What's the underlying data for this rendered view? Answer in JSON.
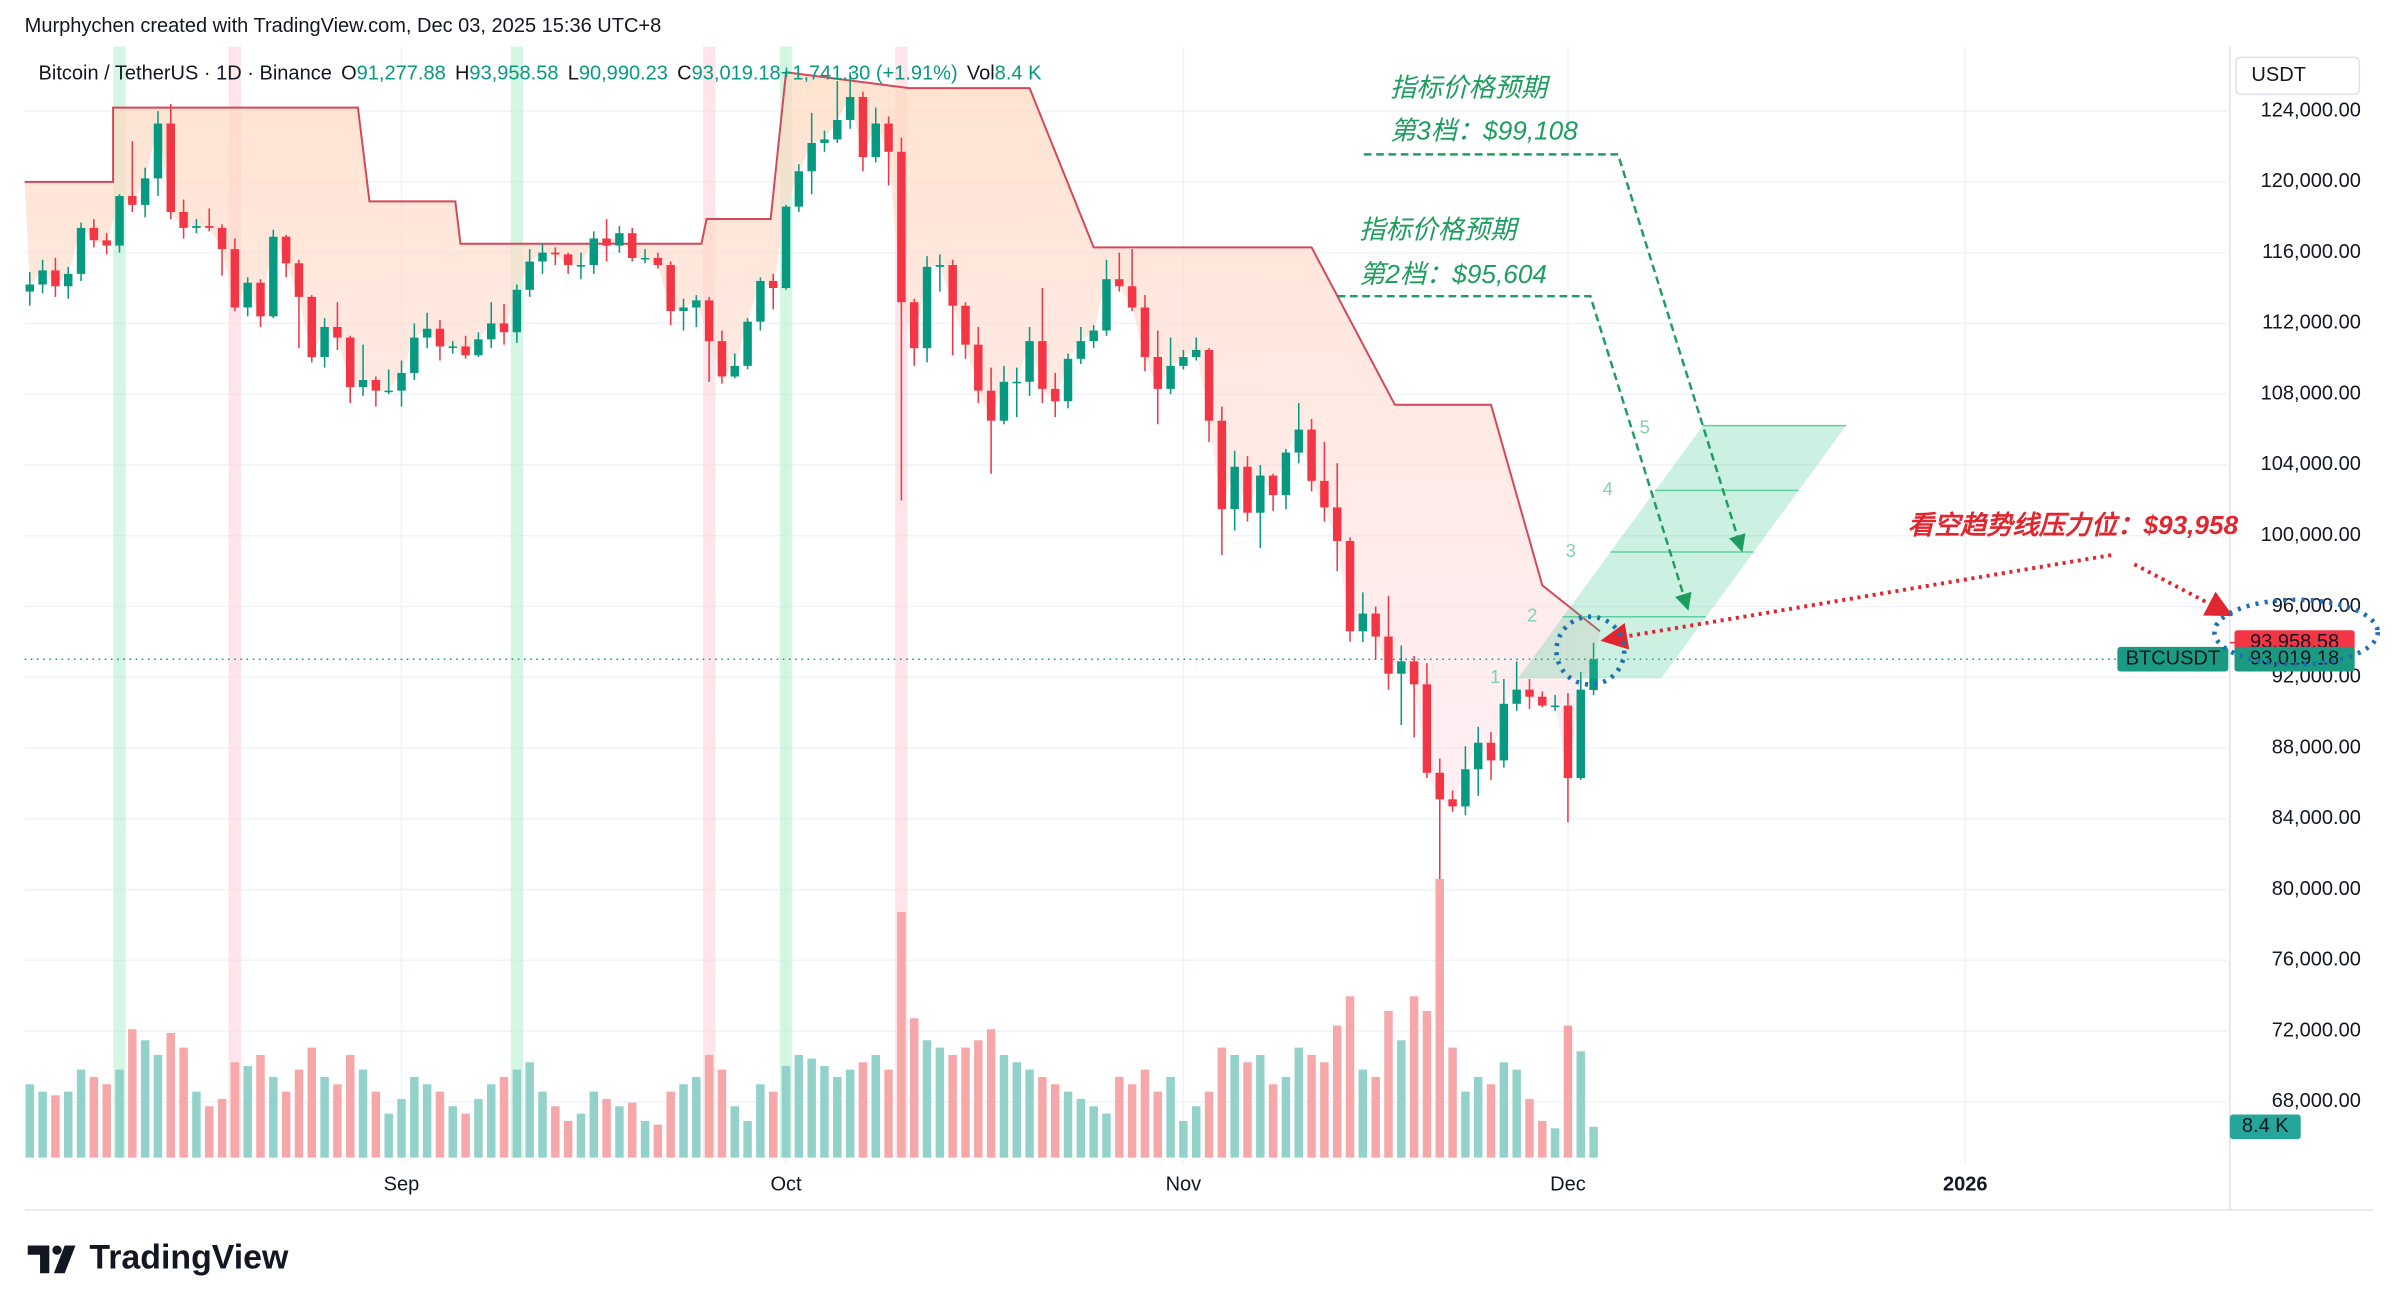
{
  "header": {
    "attribution": "Murphychen created with TradingView.com, Dec 03, 2025 15:36 UTC+8",
    "logo": "TradingView"
  },
  "chart_data": {
    "type": "candlestick",
    "legend": {
      "symbol": "Bitcoin / TetherUS · 1D · Binance",
      "items": [
        {
          "k": "O",
          "v": "91,277.88"
        },
        {
          "k": "H",
          "v": "93,958.58"
        },
        {
          "k": "L",
          "v": "90,990.23"
        },
        {
          "k": "C",
          "v": "93,019.18"
        },
        {
          "k": "",
          "v": "+1,741.30 (+1.91%)"
        },
        {
          "k": "Vol",
          "v": "8.4 K"
        }
      ]
    },
    "currency": "USDT",
    "symbol_tag": "BTCUSDT",
    "up_color": "#089981",
    "down_color": "#f23645",
    "volume_up_color": "#92d2ca",
    "volume_down_color": "#f5a7aa",
    "band_color": "#d4495a",
    "grid": true,
    "xlim": [
      -0.4,
      171.4
    ],
    "xticks": [
      {
        "value": 29,
        "label": "Sep"
      },
      {
        "value": 59,
        "label": "Oct"
      },
      {
        "value": 90,
        "label": "Nov"
      },
      {
        "value": 120,
        "label": "Dec"
      },
      {
        "value": 151,
        "label": "2026"
      }
    ],
    "ylim": [
      64500,
      127650
    ],
    "yticks": [
      {
        "value": 68000,
        "label": "68,000.00"
      },
      {
        "value": 72000,
        "label": "72,000.00"
      },
      {
        "value": 76000,
        "label": "76,000.00"
      },
      {
        "value": 80000,
        "label": "80,000.00"
      },
      {
        "value": 84000,
        "label": "84,000.00"
      },
      {
        "value": 88000,
        "label": "88,000.00"
      },
      {
        "value": 92000,
        "label": "92,000.00"
      },
      {
        "value": 96000,
        "label": "96,000.00"
      },
      {
        "value": 100000,
        "label": "100,000.00"
      },
      {
        "value": 104000,
        "label": "104,000.00"
      },
      {
        "value": 108000,
        "label": "108,000.00"
      },
      {
        "value": 112000,
        "label": "112,000.00"
      },
      {
        "value": 116000,
        "label": "116,000.00"
      },
      {
        "value": 120000,
        "label": "120,000.00"
      },
      {
        "value": 124000,
        "label": "124,000.00"
      }
    ],
    "volume_ylim": [
      0,
      303000
    ],
    "ohlc": [
      [
        113800,
        114900,
        113000,
        114200
      ],
      [
        114200,
        115600,
        113700,
        115000
      ],
      [
        115000,
        115700,
        113500,
        114100
      ],
      [
        114100,
        115200,
        113400,
        114800
      ],
      [
        114800,
        117700,
        114400,
        117400
      ],
      [
        117400,
        117900,
        116300,
        116700
      ],
      [
        116700,
        117100,
        115900,
        116400
      ],
      [
        116400,
        119300,
        116000,
        119200
      ],
      [
        119200,
        122300,
        118300,
        118700
      ],
      [
        118700,
        120800,
        118000,
        120200
      ],
      [
        120200,
        124000,
        119200,
        123300
      ],
      [
        123300,
        124400,
        117900,
        118300
      ],
      [
        118300,
        119000,
        116800,
        117400
      ],
      [
        117400,
        117900,
        117100,
        117500
      ],
      [
        117500,
        118500,
        117200,
        117400
      ],
      [
        117400,
        117600,
        114700,
        116200
      ],
      [
        116200,
        116800,
        112700,
        112900
      ],
      [
        112900,
        114600,
        112400,
        114300
      ],
      [
        114300,
        114500,
        111800,
        112400
      ],
      [
        112400,
        117300,
        112300,
        116900
      ],
      [
        116900,
        117000,
        114600,
        115400
      ],
      [
        115400,
        115600,
        110600,
        113500
      ],
      [
        113500,
        113600,
        109800,
        110100
      ],
      [
        110100,
        112300,
        109500,
        111800
      ],
      [
        111800,
        113200,
        110500,
        111200
      ],
      [
        111200,
        111300,
        107500,
        108400
      ],
      [
        108400,
        110800,
        107900,
        108800
      ],
      [
        108800,
        109000,
        107300,
        108200
      ],
      [
        108200,
        109400,
        108000,
        108200
      ],
      [
        108200,
        109900,
        107300,
        109200
      ],
      [
        109200,
        112000,
        108800,
        111200
      ],
      [
        111200,
        112600,
        110600,
        111700
      ],
      [
        111700,
        112200,
        109900,
        110700
      ],
      [
        110700,
        111000,
        110300,
        110700
      ],
      [
        110700,
        111300,
        110000,
        110200
      ],
      [
        110200,
        111500,
        110100,
        111100
      ],
      [
        111100,
        113200,
        110600,
        112000
      ],
      [
        112000,
        113100,
        110800,
        111500
      ],
      [
        111500,
        114200,
        110900,
        113900
      ],
      [
        113900,
        116200,
        113500,
        115500
      ],
      [
        115500,
        116500,
        114800,
        116000
      ],
      [
        116000,
        116300,
        115300,
        115900
      ],
      [
        115900,
        116000,
        114800,
        115300
      ],
      [
        115300,
        116000,
        114500,
        115300
      ],
      [
        115300,
        117200,
        114800,
        116800
      ],
      [
        116800,
        117900,
        115500,
        116400
      ],
      [
        116400,
        117500,
        116000,
        117100
      ],
      [
        117100,
        117400,
        115500,
        115700
      ],
      [
        115700,
        116200,
        115400,
        115700
      ],
      [
        115700,
        116000,
        115100,
        115300
      ],
      [
        115300,
        115500,
        111900,
        112700
      ],
      [
        112700,
        113400,
        111600,
        112900
      ],
      [
        112900,
        113600,
        111800,
        113300
      ],
      [
        113300,
        113500,
        108700,
        111000
      ],
      [
        111000,
        111600,
        108600,
        109000
      ],
      [
        109000,
        110300,
        108900,
        109600
      ],
      [
        109600,
        112300,
        109400,
        112100
      ],
      [
        112100,
        114600,
        111600,
        114400
      ],
      [
        114400,
        114800,
        112800,
        114000
      ],
      [
        114000,
        118700,
        113900,
        118600
      ],
      [
        118600,
        121000,
        118300,
        120600
      ],
      [
        120600,
        123900,
        119300,
        122200
      ],
      [
        122200,
        122900,
        121700,
        122400
      ],
      [
        122400,
        125700,
        122200,
        123500
      ],
      [
        123500,
        126200,
        123000,
        124800
      ],
      [
        124800,
        125100,
        120600,
        121400
      ],
      [
        121400,
        124200,
        121100,
        123300
      ],
      [
        123300,
        123700,
        119800,
        121700
      ],
      [
        121700,
        122500,
        102000,
        113200
      ],
      [
        113200,
        113400,
        109600,
        110600
      ],
      [
        110600,
        115800,
        109800,
        115200
      ],
      [
        115200,
        115900,
        113800,
        115300
      ],
      [
        115300,
        115600,
        110200,
        113000
      ],
      [
        113000,
        113200,
        110000,
        110800
      ],
      [
        110800,
        111800,
        107500,
        108200
      ],
      [
        108200,
        109500,
        103500,
        106500
      ],
      [
        106500,
        109600,
        106300,
        108700
      ],
      [
        108700,
        109500,
        106700,
        108700
      ],
      [
        108700,
        111800,
        107900,
        111000
      ],
      [
        111000,
        114000,
        107500,
        108300
      ],
      [
        108300,
        109200,
        106700,
        107600
      ],
      [
        107600,
        110300,
        107200,
        110000
      ],
      [
        110000,
        111800,
        109700,
        111000
      ],
      [
        111000,
        111900,
        110600,
        111600
      ],
      [
        111600,
        115600,
        111300,
        114500
      ],
      [
        114500,
        116000,
        113800,
        114100
      ],
      [
        114100,
        116200,
        112700,
        112900
      ],
      [
        112900,
        113600,
        109300,
        110100
      ],
      [
        110100,
        111600,
        106300,
        108300
      ],
      [
        108300,
        111200,
        108000,
        109600
      ],
      [
        109600,
        110500,
        109400,
        110100
      ],
      [
        110100,
        111200,
        109900,
        110500
      ],
      [
        110500,
        110600,
        105300,
        106500
      ],
      [
        106500,
        107300,
        98900,
        101500
      ],
      [
        101500,
        104800,
        100300,
        103900
      ],
      [
        103900,
        104500,
        100800,
        101300
      ],
      [
        101300,
        104000,
        99300,
        103400
      ],
      [
        103400,
        103500,
        101400,
        102300
      ],
      [
        102300,
        104900,
        101500,
        104700
      ],
      [
        104700,
        107500,
        104100,
        106000
      ],
      [
        106000,
        106600,
        102500,
        103100
      ],
      [
        103100,
        105300,
        100800,
        101600
      ],
      [
        101600,
        104100,
        98000,
        99700
      ],
      [
        99700,
        99900,
        94000,
        94600
      ],
      [
        94600,
        96800,
        94000,
        95600
      ],
      [
        95600,
        96000,
        93000,
        94300
      ],
      [
        94300,
        96600,
        91300,
        92200
      ],
      [
        92200,
        93800,
        89300,
        92900
      ],
      [
        92900,
        93200,
        88600,
        91600
      ],
      [
        91600,
        92800,
        86300,
        86600
      ],
      [
        86600,
        87400,
        80600,
        85100
      ],
      [
        85100,
        85600,
        84400,
        84700
      ],
      [
        84700,
        88100,
        84200,
        86800
      ],
      [
        86800,
        89200,
        85300,
        88300
      ],
      [
        88300,
        88900,
        86200,
        87300
      ],
      [
        87300,
        91900,
        86900,
        90500
      ],
      [
        90500,
        92900,
        90100,
        91300
      ],
      [
        91300,
        91900,
        90200,
        90900
      ],
      [
        90900,
        91200,
        90300,
        90400
      ],
      [
        90400,
        91000,
        90100,
        90400
      ],
      [
        90400,
        91100,
        83800,
        86300
      ],
      [
        86300,
        92300,
        86200,
        91300
      ],
      [
        91277.88,
        93958.58,
        90990.23,
        93019.18
      ]
    ],
    "volume": [
      20000,
      18000,
      17000,
      18000,
      24000,
      22000,
      20000,
      24000,
      35000,
      32000,
      28000,
      34000,
      30000,
      18000,
      14000,
      16000,
      26000,
      25000,
      28000,
      22000,
      18000,
      24000,
      30000,
      22000,
      20000,
      28000,
      24000,
      18000,
      12000,
      16000,
      22000,
      20000,
      18000,
      14000,
      12000,
      16000,
      20000,
      22000,
      24000,
      26000,
      18000,
      14000,
      10000,
      12000,
      18000,
      16000,
      14000,
      15000,
      10000,
      9000,
      18000,
      20000,
      22000,
      28000,
      24000,
      14000,
      10000,
      20000,
      18000,
      25000,
      28000,
      27000,
      25000,
      22000,
      24000,
      26000,
      28000,
      24000,
      67000,
      38000,
      32000,
      30000,
      28000,
      30000,
      32000,
      35000,
      28000,
      26000,
      24000,
      22000,
      20000,
      18000,
      16000,
      14000,
      12000,
      22000,
      20000,
      24000,
      18000,
      22000,
      10000,
      14000,
      18000,
      30000,
      28000,
      26000,
      28000,
      20000,
      22000,
      30000,
      28000,
      26000,
      36000,
      44000,
      24000,
      22000,
      40000,
      32000,
      44000,
      40000,
      76000,
      30000,
      18000,
      22000,
      20000,
      26000,
      24000,
      16000,
      10000,
      8000,
      36000,
      29000,
      8400
    ],
    "band": {
      "x": [
        -0.4,
        6.5,
        6.5,
        25.6,
        26.5,
        33.2,
        33.6,
        38.3,
        52.4,
        52.8,
        57.8,
        59,
        68.6,
        78,
        83,
        100,
        106.5,
        114,
        118,
        122.5
      ],
      "y": [
        120000,
        120000,
        124200,
        124200,
        118900,
        118900,
        116500,
        116500,
        116500,
        117900,
        117900,
        126200,
        125300,
        125300,
        116300,
        116300,
        107400,
        107400,
        97200,
        94600
      ]
    },
    "signals": [
      {
        "x": 7,
        "color": "#b9f0cf"
      },
      {
        "x": 16,
        "color": "#fbd3db"
      },
      {
        "x": 38,
        "color": "#b9f0cf"
      },
      {
        "x": 53,
        "color": "#fbd3db"
      },
      {
        "x": 59,
        "color": "#b9f0cf"
      },
      {
        "x": 68,
        "color": "#fbd3db"
      }
    ],
    "high_tag": {
      "value": 93958.58,
      "label": "93,958.58"
    },
    "last_price": {
      "value": 93019.18,
      "label": "93,019.18"
    },
    "volume_tag": {
      "value": 8400,
      "label": "8.4 K"
    },
    "annotations": {
      "level3_title": "指标价格预期",
      "level3": "第3档：$99,108",
      "level2_title": "指标价格预期",
      "level2": "第2档：$95,604",
      "resistance": "看空趋势线压力位：$93,958",
      "channel_labels": [
        "1",
        "2",
        "3",
        "4",
        "5"
      ]
    }
  }
}
